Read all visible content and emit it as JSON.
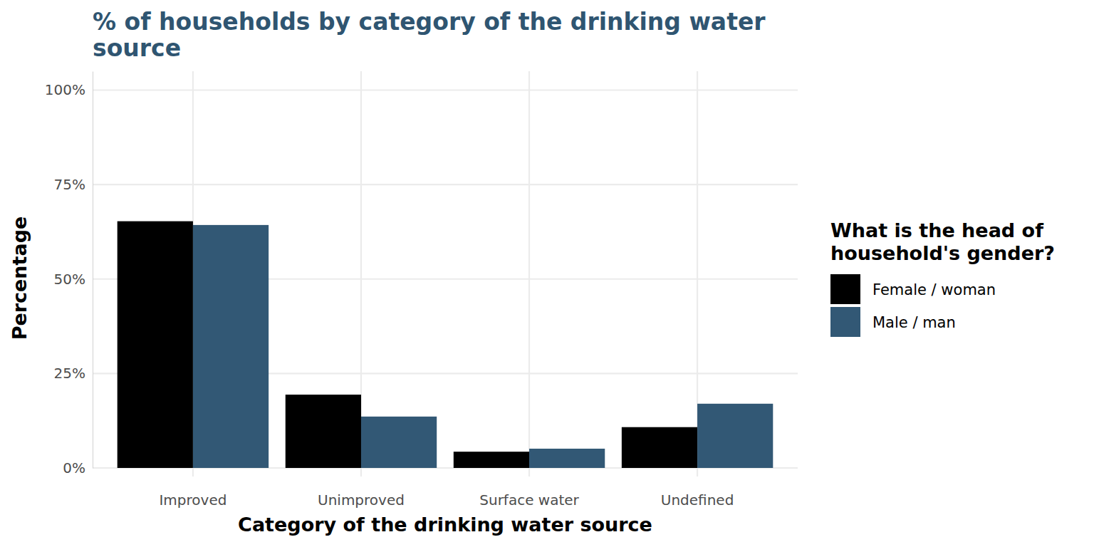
{
  "chart_data": {
    "type": "bar",
    "title": "% of households by category of the drinking water source",
    "x_label": "Category of the drinking water source",
    "y_label": "Percentage",
    "legend_title": "What is the head of household's gender?",
    "legend": "right",
    "grid": true,
    "categories": [
      "Improved",
      "Unimproved",
      "Surface water",
      "Undefined"
    ],
    "series": [
      {
        "name": "Female / woman",
        "color": "#000000",
        "values": [
          65.3,
          19.4,
          4.3,
          10.8
        ]
      },
      {
        "name": "Male / man",
        "color": "#325875",
        "values": [
          64.3,
          13.6,
          5.1,
          17.0
        ]
      }
    ],
    "ylim": [
      0,
      105
    ],
    "yticks": [
      {
        "value": 0,
        "label": "0%"
      },
      {
        "value": 25,
        "label": "25%"
      },
      {
        "value": 50,
        "label": "50%"
      },
      {
        "value": 75,
        "label": "75%"
      },
      {
        "value": 100,
        "label": "100%"
      }
    ]
  }
}
